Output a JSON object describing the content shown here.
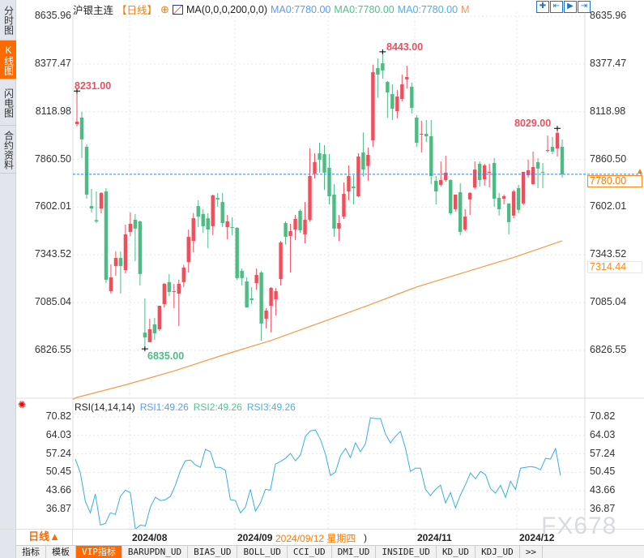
{
  "sidebar": {
    "tabs": [
      {
        "label": "分时图",
        "active": false
      },
      {
        "label": "K线图",
        "active": true
      },
      {
        "label": "闪电图",
        "active": false
      },
      {
        "label": "合约资料",
        "active": false
      }
    ]
  },
  "header": {
    "symbol": "沪银主连",
    "period": "【日线】",
    "ma_params": "MA(0,0,0,200,0,0)",
    "ma_values": [
      "MA0:7780.00",
      "MA0:7780.00",
      "MA0:7780.00"
    ],
    "m_label": "M",
    "icons": [
      "crosshair-icon",
      "zoom-fit-icon",
      "play-icon",
      "exit-icon"
    ]
  },
  "colors": {
    "up": "#ef4f5d",
    "down": "#4fba85",
    "ma200": "#f59a43",
    "rsi": "#38aee8",
    "accent": "#ff6a00",
    "last_price_line": "#1e88ff"
  },
  "price_axis": {
    "ticks": [
      "8635.96",
      "8377.47",
      "8118.98",
      "7860.50",
      "7602.01",
      "7343.52",
      "7085.04",
      "6826.55"
    ],
    "last_price": "7780.00",
    "ma_last": "7314.44"
  },
  "annotations": {
    "high1": "8231.00",
    "high2": "8443.00",
    "high3": "8029.00",
    "low1": "6835.00"
  },
  "chart_data": {
    "type": "candlestick",
    "ylim": [
      6826.55,
      8635.96
    ],
    "candles": [
      [
        8052,
        8231,
        8039,
        8065
      ],
      [
        8087,
        8118,
        7868,
        7969
      ],
      [
        7929,
        7942,
        7648,
        7670
      ],
      [
        7608,
        7701,
        7573,
        7595
      ],
      [
        7532,
        7687,
        7516,
        7525
      ],
      [
        7595,
        7683,
        7569,
        7679
      ],
      [
        7687,
        7705,
        7191,
        7209
      ],
      [
        7147,
        7292,
        7134,
        7222
      ],
      [
        7283,
        7362,
        7231,
        7327
      ],
      [
        7327,
        7362,
        7134,
        7283
      ],
      [
        7261,
        7507,
        7244,
        7455
      ],
      [
        7468,
        7573,
        7446,
        7512
      ],
      [
        7534,
        7565,
        7310,
        7486
      ],
      [
        7525,
        7529,
        7178,
        7240
      ],
      [
        6923,
        7108,
        6835,
        6897
      ],
      [
        6871,
        6998,
        6871,
        6941
      ],
      [
        6967,
        7002,
        6884,
        6919
      ],
      [
        6941,
        7068,
        6932,
        7068
      ],
      [
        7077,
        7191,
        7059,
        7187
      ],
      [
        7196,
        7240,
        7121,
        7143
      ],
      [
        7143,
        7187,
        7055,
        7147
      ],
      [
        7134,
        7209,
        6958,
        7187
      ],
      [
        7196,
        7290,
        7170,
        7275
      ],
      [
        7305,
        7481,
        7248,
        7441
      ],
      [
        7419,
        7569,
        7358,
        7542
      ],
      [
        7608,
        7639,
        7494,
        7551
      ],
      [
        7565,
        7591,
        7463,
        7499
      ],
      [
        7542,
        7569,
        7380,
        7481
      ],
      [
        7499,
        7670,
        7450,
        7666
      ],
      [
        7652,
        7679,
        7604,
        7644
      ],
      [
        7630,
        7679,
        7494,
        7516
      ],
      [
        7494,
        7560,
        7428,
        7525
      ],
      [
        7494,
        7547,
        7450,
        7490
      ],
      [
        7490,
        7494,
        7209,
        7218
      ],
      [
        7257,
        7270,
        7178,
        7218
      ],
      [
        7200,
        7222,
        7059,
        7059
      ],
      [
        7108,
        7169,
        7077,
        7099
      ],
      [
        7191,
        7270,
        7156,
        7235
      ],
      [
        7248,
        7257,
        6879,
        6972
      ],
      [
        6998,
        7055,
        6946,
        7042
      ],
      [
        7068,
        7169,
        6924,
        7165
      ],
      [
        7103,
        7165,
        7016,
        7147
      ],
      [
        7213,
        7419,
        7178,
        7411
      ],
      [
        7516,
        7525,
        7400,
        7441
      ],
      [
        7446,
        7512,
        7248,
        7472
      ],
      [
        7481,
        7560,
        7424,
        7538
      ],
      [
        7582,
        7591,
        7463,
        7477
      ],
      [
        7455,
        7630,
        7406,
        7534
      ],
      [
        7534,
        7920,
        7525,
        7771
      ],
      [
        7784,
        7894,
        7758,
        7846
      ],
      [
        7894,
        7951,
        7789,
        7859
      ],
      [
        7889,
        7938,
        7696,
        7789
      ],
      [
        7815,
        7889,
        7617,
        7661
      ],
      [
        7670,
        7727,
        7441,
        7486
      ],
      [
        7486,
        7560,
        7419,
        7516
      ],
      [
        7551,
        7736,
        7538,
        7674
      ],
      [
        7687,
        7828,
        7639,
        7771
      ],
      [
        7714,
        7775,
        7617,
        7705
      ],
      [
        7661,
        7894,
        7657,
        7876
      ],
      [
        7898,
        8006,
        7767,
        7806
      ],
      [
        7825,
        7925,
        7745,
        7885
      ],
      [
        7964,
        8373,
        7929,
        8333
      ],
      [
        8355,
        8408,
        8194,
        8320
      ],
      [
        8381,
        8443,
        8298,
        8342
      ],
      [
        8280,
        8285,
        8087,
        8223
      ],
      [
        8214,
        8267,
        8074,
        8135
      ],
      [
        8122,
        8236,
        8083,
        8201
      ],
      [
        8188,
        8320,
        8175,
        8267
      ],
      [
        8294,
        8368,
        8245,
        8307
      ],
      [
        8254,
        8276,
        8109,
        8140
      ],
      [
        8087,
        8100,
        7929,
        7951
      ],
      [
        7995,
        8070,
        7898,
        7999
      ],
      [
        7999,
        8074,
        7955,
        7986
      ],
      [
        7986,
        8074,
        7727,
        7771
      ],
      [
        7745,
        7771,
        7617,
        7687
      ],
      [
        7723,
        7850,
        7714,
        7749
      ],
      [
        7749,
        7880,
        7740,
        7789
      ],
      [
        7749,
        7753,
        7560,
        7569
      ],
      [
        7591,
        7670,
        7578,
        7670
      ],
      [
        7683,
        7732,
        7450,
        7468
      ],
      [
        7481,
        7591,
        7472,
        7551
      ],
      [
        7644,
        7683,
        7560,
        7679
      ],
      [
        7709,
        7850,
        7701,
        7806
      ],
      [
        7837,
        7850,
        7714,
        7749
      ],
      [
        7753,
        7837,
        7718,
        7828
      ],
      [
        7789,
        7837,
        7709,
        7793
      ],
      [
        7841,
        7868,
        7604,
        7648
      ],
      [
        7652,
        7679,
        7556,
        7591
      ],
      [
        7648,
        7670,
        7617,
        7661
      ],
      [
        7622,
        7622,
        7455,
        7521
      ],
      [
        7556,
        7696,
        7542,
        7687
      ],
      [
        7705,
        7723,
        7569,
        7587
      ],
      [
        7622,
        7793,
        7613,
        7793
      ],
      [
        7775,
        7859,
        7762,
        7802
      ],
      [
        7727,
        7903,
        7723,
        7819
      ],
      [
        7846,
        7868,
        7705,
        7811
      ],
      [
        7793,
        7841,
        7705,
        7789
      ],
      [
        7907,
        7990,
        7898,
        7911
      ],
      [
        7929,
        7982,
        7889,
        7903
      ],
      [
        7920,
        8029,
        7876,
        8004
      ],
      [
        7929,
        7969,
        7762,
        7780
      ]
    ],
    "ma200": [
      6572,
      6640,
      6715,
      6800,
      6880,
      6975,
      7070,
      7170,
      7250,
      7330,
      7420
    ],
    "x_ticks": [
      "2024/08",
      "2024/09",
      "2024/11",
      "2024/12"
    ]
  },
  "rsi": {
    "title": "RSI(14,14,14)",
    "rsi1": "RSI1:49.26",
    "rsi2": "RSI2:49.26",
    "rsi3": "RSI3:49.26",
    "ticks": [
      "70.82",
      "64.03",
      "57.24",
      "50.45",
      "43.66",
      "36.87"
    ],
    "values": [
      55.3,
      50.2,
      39.8,
      35.6,
      42.5,
      31.1,
      31.7,
      35.6,
      35.0,
      41.6,
      43.9,
      43.0,
      29.6,
      31.1,
      30.8,
      37.7,
      41.3,
      40.1,
      40.4,
      41.6,
      45.7,
      51.1,
      54.7,
      55.0,
      53.2,
      52.3,
      58.9,
      58.0,
      52.3,
      52.3,
      51.1,
      40.4,
      40.1,
      35.6,
      37.7,
      44.2,
      36.2,
      39.2,
      44.2,
      43.9,
      53.5,
      54.4,
      55.6,
      57.4,
      54.7,
      56.8,
      63.7,
      65.7,
      66.0,
      62.5,
      57.1,
      49.3,
      50.5,
      56.5,
      59.2,
      55.9,
      61.3,
      58.0,
      61.0,
      70.5,
      70.2,
      70.2,
      64.5,
      61.3,
      63.7,
      65.5,
      59.2,
      50.8,
      52.0,
      52.0,
      44.2,
      41.9,
      44.2,
      45.7,
      39.2,
      43.0,
      37.4,
      42.2,
      46.0,
      50.2,
      48.1,
      50.8,
      49.6,
      44.5,
      42.8,
      45.7,
      41.3,
      47.2,
      44.2,
      52.0,
      52.3,
      52.6,
      52.3,
      51.4,
      55.6,
      55.3,
      59.2,
      49.26
    ]
  },
  "date_axis": {
    "period_label": "日线▲",
    "crosshair_date": "2024/09/12 星期四",
    "crosshair_tail": ")"
  },
  "bottom_tabs": [
    {
      "label": "指标",
      "active": false
    },
    {
      "label": "模板",
      "active": false
    },
    {
      "label": "VIP指标",
      "active": true
    },
    {
      "label": "BARUPDN_UD"
    },
    {
      "label": "BIAS_UD"
    },
    {
      "label": "BOLL_UD"
    },
    {
      "label": "CCI_UD"
    },
    {
      "label": "DMI_UD"
    },
    {
      "label": "INSIDE_UD"
    },
    {
      "label": "KD_UD"
    },
    {
      "label": "KDJ_UD"
    },
    {
      "label": ">>"
    }
  ],
  "watermark": "FX678"
}
